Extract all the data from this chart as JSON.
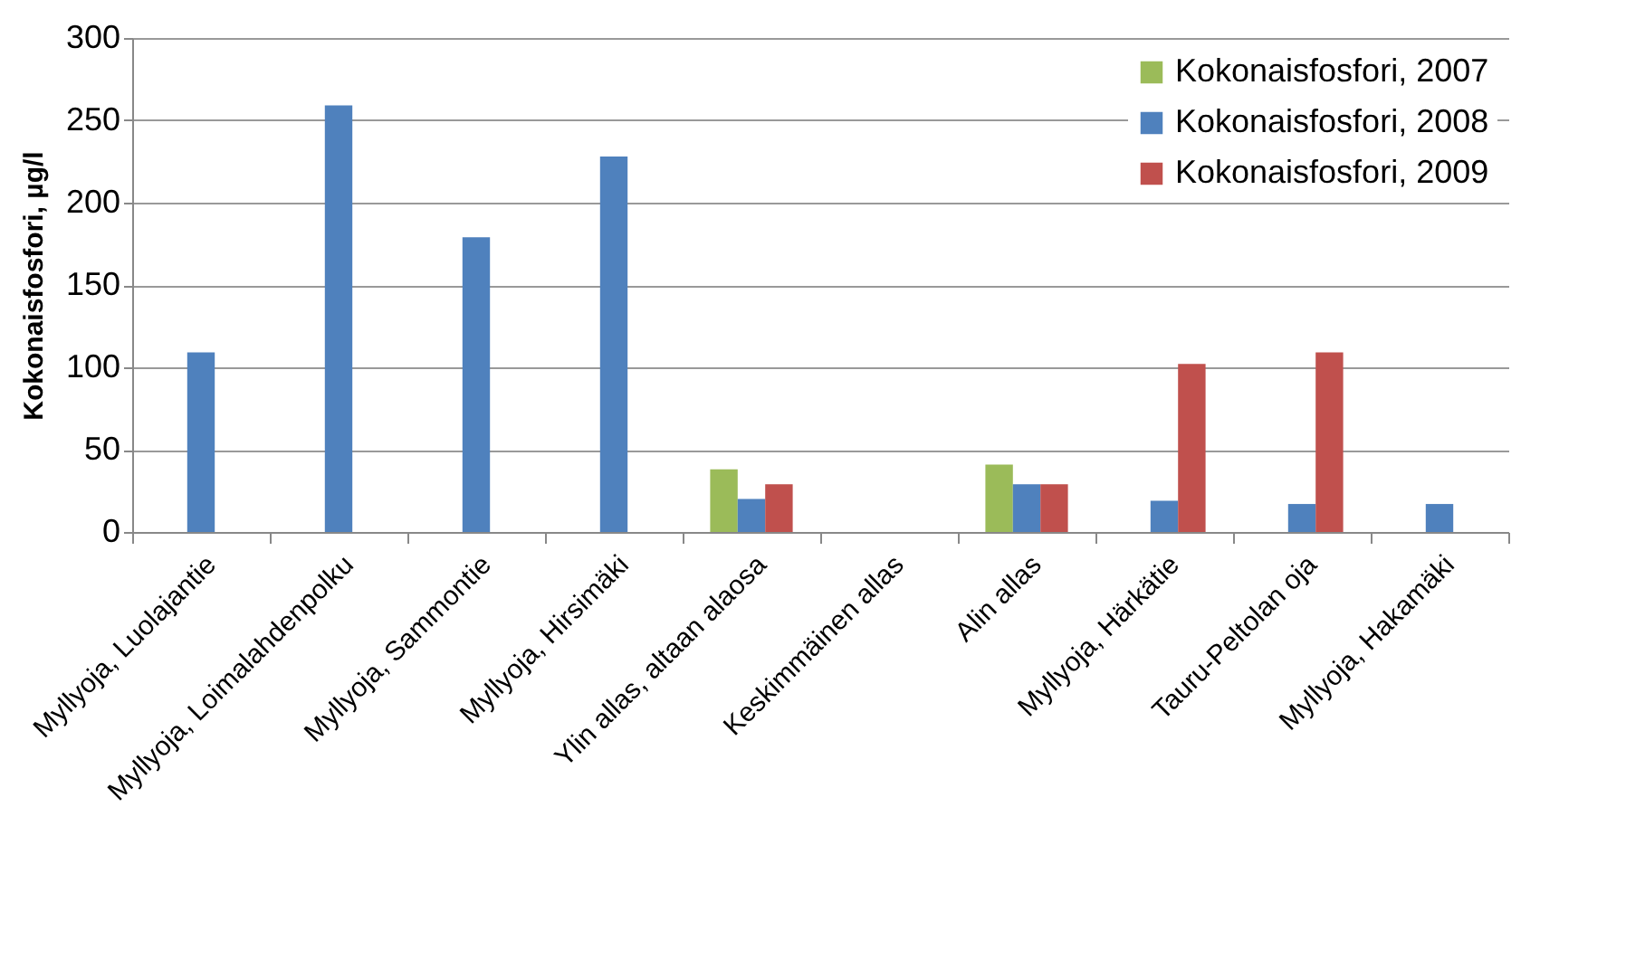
{
  "chart_data": {
    "type": "bar",
    "ylabel": "Kokonaisfosfori, µg/l",
    "categories": [
      "Myllyoja, Luolajantie",
      "Myllyoja, Loimalahdenpolku",
      "Myllyoja, Sammontie",
      "Myllyoja, Hirsimäki",
      "Ylin allas, altaan alaosa",
      "Keskimmäinen allas",
      "Alin allas",
      "Myllyoja, Härkätie",
      "Tauru-Peltolan oja",
      "Myllyoja, Hakamäki"
    ],
    "series": [
      {
        "name": "Kokonaisfosfori, 2007",
        "color": "#9bbb59",
        "values": [
          null,
          null,
          null,
          null,
          38,
          null,
          41,
          null,
          null,
          null
        ]
      },
      {
        "name": "Kokonaisfosfori, 2008",
        "color": "#4f81bd",
        "values": [
          109,
          259,
          179,
          228,
          20,
          null,
          29,
          19,
          17,
          17
        ]
      },
      {
        "name": "Kokonaisfosfori, 2009",
        "color": "#c0504d",
        "values": [
          null,
          null,
          null,
          null,
          29,
          null,
          29,
          102,
          109,
          null
        ]
      }
    ],
    "ylim": [
      0,
      300
    ],
    "yticks": [
      0,
      50,
      100,
      150,
      200,
      250,
      300
    ],
    "grid": "y",
    "legend": "top right"
  }
}
